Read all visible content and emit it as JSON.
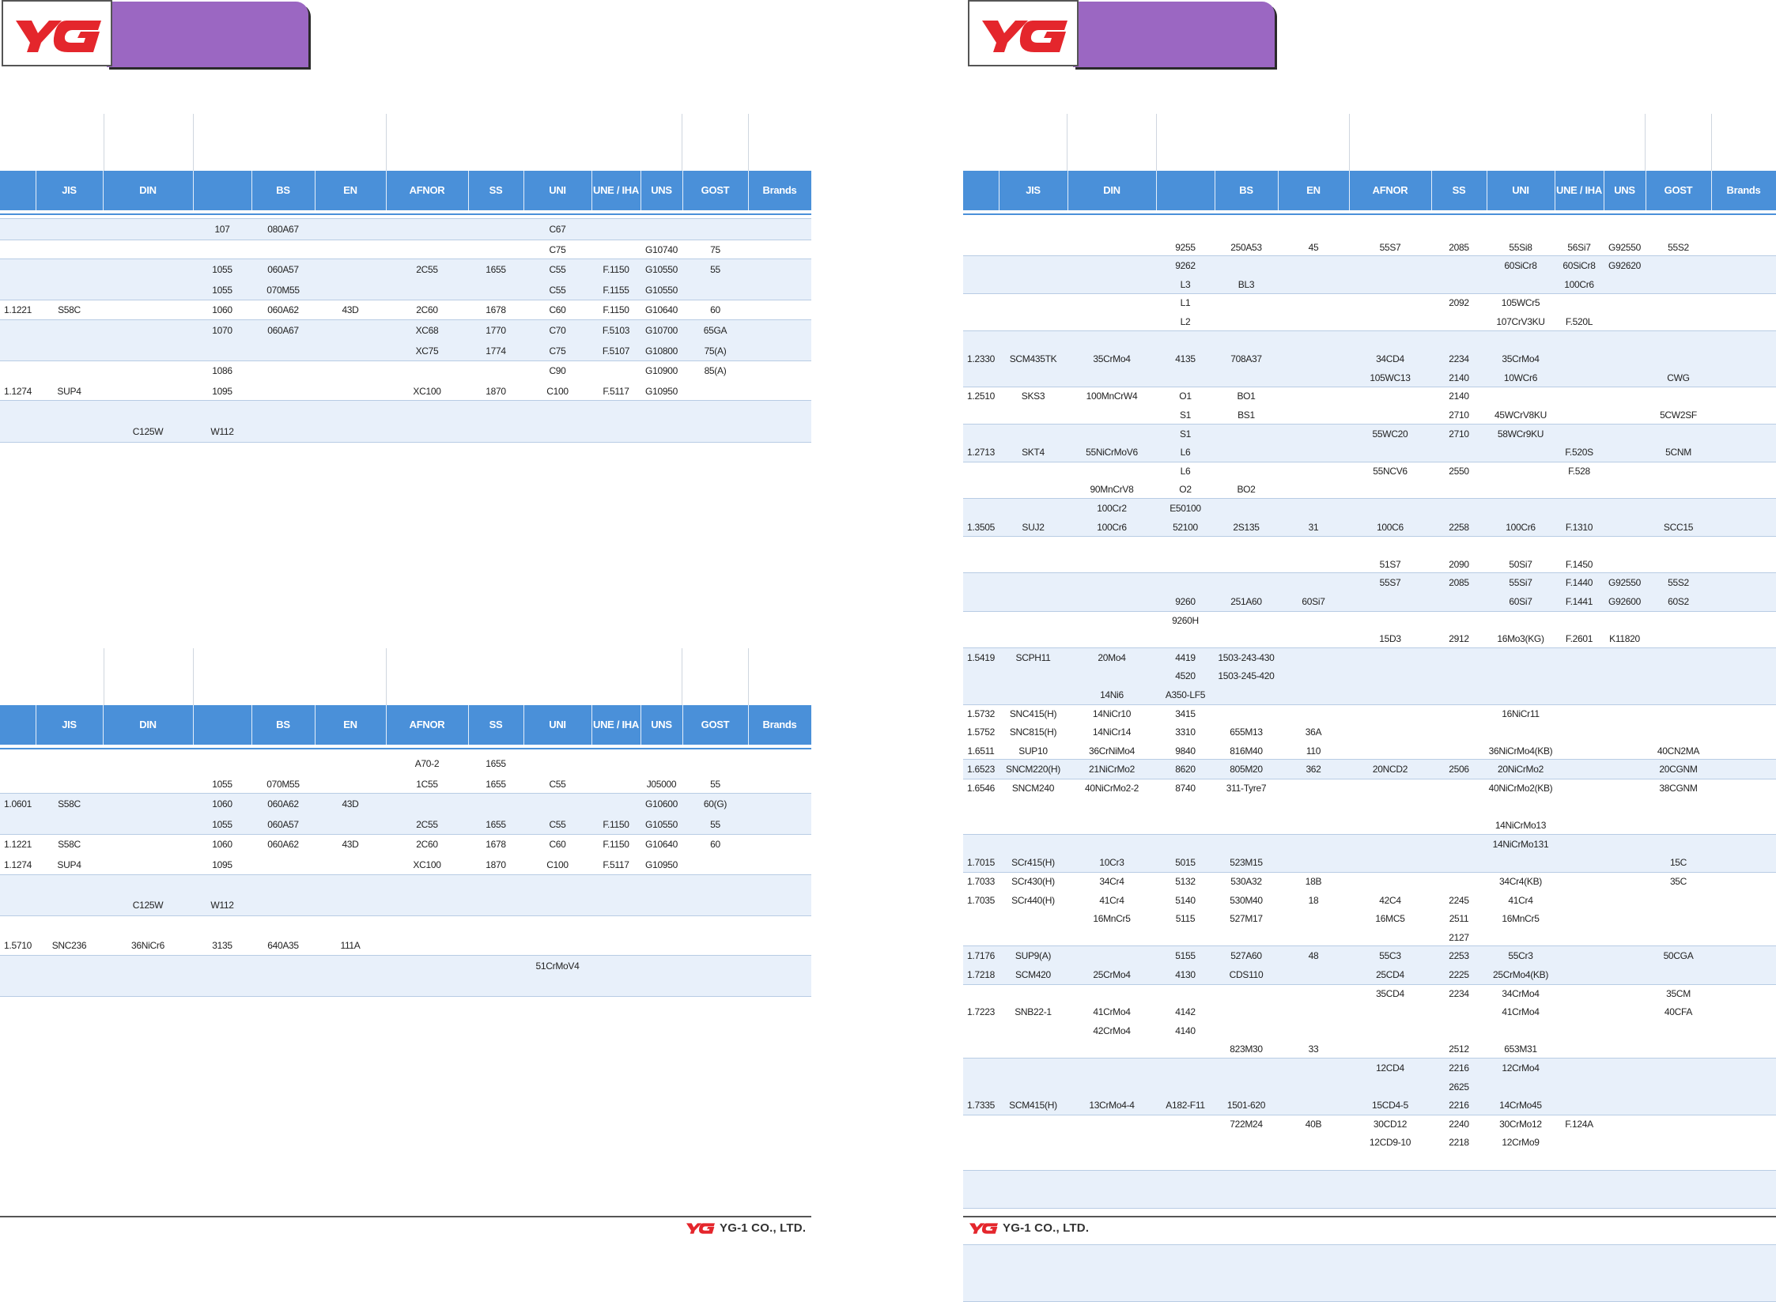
{
  "brand": {
    "company": "YG-1 CO., LTD.",
    "colors": {
      "purple": "#9b67c2",
      "blue": "#4a90d9",
      "red": "#e4262c"
    }
  },
  "columns": [
    "",
    "JIS",
    "DIN",
    "",
    "BS",
    "EN",
    "AFNOR",
    "SS",
    "UNI",
    "UNE / IHA",
    "UNS",
    "GOST",
    "Brands"
  ],
  "left_table_1": {
    "bands": [
      [
        0,
        0
      ],
      [
        2,
        3
      ],
      [
        5,
        6
      ],
      [
        9,
        10
      ]
    ],
    "rows": [
      [
        "",
        "",
        "",
        "107",
        "080A67",
        "",
        "",
        "",
        "C67",
        "",
        "",
        "",
        ""
      ],
      [
        "",
        "",
        "",
        "",
        "",
        "",
        "",
        "",
        "C75",
        "",
        "G10740",
        "75",
        ""
      ],
      [
        "",
        "",
        "",
        "1055",
        "060A57",
        "",
        "2C55",
        "1655",
        "C55",
        "F.1150",
        "G10550",
        "55",
        ""
      ],
      [
        "",
        "",
        "",
        "1055",
        "070M55",
        "",
        "",
        "",
        "C55",
        "F.1155",
        "G10550",
        "",
        ""
      ],
      [
        "1.1221",
        "S58C",
        "",
        "1060",
        "060A62",
        "43D",
        "2C60",
        "1678",
        "C60",
        "F.1150",
        "G10640",
        "60",
        ""
      ],
      [
        "",
        "",
        "",
        "1070",
        "060A67",
        "",
        "XC68",
        "1770",
        "C70",
        "F.5103",
        "G10700",
        "65GA",
        ""
      ],
      [
        "",
        "",
        "",
        "",
        "",
        "",
        "XC75",
        "1774",
        "C75",
        "F.5107",
        "G10800",
        "75(A)",
        ""
      ],
      [
        "",
        "",
        "",
        "1086",
        "",
        "",
        "",
        "",
        "C90",
        "",
        "G10900",
        "85(A)",
        ""
      ],
      [
        "1.1274",
        "SUP4",
        "",
        "1095",
        "",
        "",
        "XC100",
        "1870",
        "C100",
        "F.5117",
        "G10950",
        "",
        ""
      ],
      [
        "",
        "",
        "",
        "",
        "",
        "",
        "",
        "",
        "",
        "",
        "",
        "",
        ""
      ],
      [
        "",
        "",
        "C125W",
        "W112",
        "",
        "",
        "",
        "",
        "",
        "",
        "",
        "",
        ""
      ],
      [
        "",
        "",
        "",
        "",
        "",
        "",
        "",
        "",
        "",
        "",
        "",
        "",
        ""
      ]
    ]
  },
  "left_table_2": {
    "bands": [
      [
        2,
        3
      ],
      [
        6,
        7
      ],
      [
        10,
        11
      ]
    ],
    "rows": [
      [
        "",
        "",
        "",
        "",
        "",
        "",
        "A70-2",
        "1655",
        "",
        "",
        "",
        "",
        ""
      ],
      [
        "",
        "",
        "",
        "1055",
        "070M55",
        "",
        "1C55",
        "1655",
        "C55",
        "",
        "J05000",
        "55",
        ""
      ],
      [
        "1.0601",
        "S58C",
        "",
        "1060",
        "060A62",
        "43D",
        "",
        "",
        "",
        "",
        "G10600",
        "60(G)",
        ""
      ],
      [
        "",
        "",
        "",
        "1055",
        "060A57",
        "",
        "2C55",
        "1655",
        "C55",
        "F.1150",
        "G10550",
        "55",
        ""
      ],
      [
        "1.1221",
        "S58C",
        "",
        "1060",
        "060A62",
        "43D",
        "2C60",
        "1678",
        "C60",
        "F.1150",
        "G10640",
        "60",
        ""
      ],
      [
        "1.1274",
        "SUP4",
        "",
        "1095",
        "",
        "",
        "XC100",
        "1870",
        "C100",
        "F.5117",
        "G10950",
        "",
        ""
      ],
      [
        "",
        "",
        "",
        "",
        "",
        "",
        "",
        "",
        "",
        "",
        "",
        "",
        ""
      ],
      [
        "",
        "",
        "C125W",
        "W112",
        "",
        "",
        "",
        "",
        "",
        "",
        "",
        "",
        ""
      ],
      [
        "",
        "",
        "",
        "",
        "",
        "",
        "",
        "",
        "",
        "",
        "",
        "",
        ""
      ],
      [
        "1.5710",
        "SNC236",
        "36NiCr6",
        "3135",
        "640A35",
        "111A",
        "",
        "",
        "",
        "",
        "",
        "",
        ""
      ],
      [
        "",
        "",
        "",
        "",
        "",
        "",
        "",
        "",
        "51CrMoV4",
        "",
        "",
        "",
        ""
      ],
      [
        "",
        "",
        "",
        "",
        "",
        "",
        "",
        "",
        "",
        "",
        "",
        "",
        ""
      ]
    ]
  },
  "right_table": {
    "bands": [
      [
        2,
        3
      ],
      [
        6,
        8
      ],
      [
        11,
        12
      ],
      [
        15,
        16
      ],
      [
        19,
        20
      ],
      [
        23,
        25
      ],
      [
        29,
        29
      ],
      [
        33,
        34
      ],
      [
        39,
        40
      ],
      [
        45,
        47
      ],
      [
        51,
        52
      ],
      [
        55,
        57
      ]
    ],
    "rows": [
      [
        "",
        "",
        "",
        "",
        "",
        "",
        "",
        "",
        "",
        "",
        "",
        "",
        ""
      ],
      [
        "",
        "",
        "",
        "9255",
        "250A53",
        "45",
        "55S7",
        "2085",
        "55Si8",
        "56Si7",
        "G92550",
        "55S2",
        ""
      ],
      [
        "",
        "",
        "",
        "9262",
        "",
        "",
        "",
        "",
        "60SiCr8",
        "60SiCr8",
        "G92620",
        "",
        ""
      ],
      [
        "",
        "",
        "",
        "L3",
        "BL3",
        "",
        "",
        "",
        "",
        "100Cr6",
        "",
        "",
        ""
      ],
      [
        "",
        "",
        "",
        "L1",
        "",
        "",
        "",
        "2092",
        "105WCr5",
        "",
        "",
        "",
        ""
      ],
      [
        "",
        "",
        "",
        "L2",
        "",
        "",
        "",
        "",
        "107CrV3KU",
        "F.520L",
        "",
        "",
        ""
      ],
      [
        "",
        "",
        "",
        "",
        "",
        "",
        "",
        "",
        "",
        "",
        "",
        "",
        ""
      ],
      [
        "1.2330",
        "SCM435TK",
        "35CrMo4",
        "4135",
        "708A37",
        "",
        "34CD4",
        "2234",
        "35CrMo4",
        "",
        "",
        "",
        ""
      ],
      [
        "",
        "",
        "",
        "",
        "",
        "",
        "105WC13",
        "2140",
        "10WCr6",
        "",
        "",
        "CWG",
        ""
      ],
      [
        "1.2510",
        "SKS3",
        "100MnCrW4",
        "O1",
        "BO1",
        "",
        "",
        "2140",
        "",
        "",
        "",
        "",
        ""
      ],
      [
        "",
        "",
        "",
        "S1",
        "BS1",
        "",
        "",
        "2710",
        "45WCrV8KU",
        "",
        "",
        "5CW2SF",
        ""
      ],
      [
        "",
        "",
        "",
        "S1",
        "",
        "",
        "55WC20",
        "2710",
        "58WCr9KU",
        "",
        "",
        "",
        ""
      ],
      [
        "1.2713",
        "SKT4",
        "55NiCrMoV6",
        "L6",
        "",
        "",
        "",
        "",
        "",
        "F.520S",
        "",
        "5CNM",
        ""
      ],
      [
        "",
        "",
        "",
        "L6",
        "",
        "",
        "55NCV6",
        "2550",
        "",
        "F.528",
        "",
        "",
        ""
      ],
      [
        "",
        "",
        "90MnCrV8",
        "O2",
        "BO2",
        "",
        "",
        "",
        "",
        "",
        "",
        "",
        ""
      ],
      [
        "",
        "",
        "100Cr2",
        "E50100",
        "",
        "",
        "",
        "",
        "",
        "",
        "",
        "",
        ""
      ],
      [
        "1.3505",
        "SUJ2",
        "100Cr6",
        "52100",
        "2S135",
        "31",
        "100C6",
        "2258",
        "100Cr6",
        "F.1310",
        "",
        "SCC15",
        ""
      ],
      [
        "",
        "",
        "",
        "",
        "",
        "",
        "",
        "",
        "",
        "",
        "",
        "",
        ""
      ],
      [
        "",
        "",
        "",
        "",
        "",
        "",
        "51S7",
        "2090",
        "50Si7",
        "F.1450",
        "",
        "",
        ""
      ],
      [
        "",
        "",
        "",
        "",
        "",
        "",
        "55S7",
        "2085",
        "55Si7",
        "F.1440",
        "G92550",
        "55S2",
        ""
      ],
      [
        "",
        "",
        "",
        "9260",
        "251A60",
        "60Si7",
        "",
        "",
        "60Si7",
        "F.1441",
        "G92600",
        "60S2",
        ""
      ],
      [
        "",
        "",
        "",
        "9260H",
        "",
        "",
        "",
        "",
        "",
        "",
        "",
        "",
        ""
      ],
      [
        "",
        "",
        "",
        "",
        "",
        "",
        "15D3",
        "2912",
        "16Mo3(KG)",
        "F.2601",
        "K11820",
        "",
        ""
      ],
      [
        "1.5419",
        "SCPH11",
        "20Mo4",
        "4419",
        "1503-243-430",
        "",
        "",
        "",
        "",
        "",
        "",
        "",
        ""
      ],
      [
        "",
        "",
        "",
        "4520",
        "1503-245-420",
        "",
        "",
        "",
        "",
        "",
        "",
        "",
        ""
      ],
      [
        "",
        "",
        "14Ni6",
        "A350-LF5",
        "",
        "",
        "",
        "",
        "",
        "",
        "",
        "",
        ""
      ],
      [
        "1.5732",
        "SNC415(H)",
        "14NiCr10",
        "3415",
        "",
        "",
        "",
        "",
        "16NiCr11",
        "",
        "",
        "",
        ""
      ],
      [
        "1.5752",
        "SNC815(H)",
        "14NiCr14",
        "3310",
        "655M13",
        "36A",
        "",
        "",
        "",
        "",
        "",
        "",
        ""
      ],
      [
        "1.6511",
        "SUP10",
        "36CrNiMo4",
        "9840",
        "816M40",
        "110",
        "",
        "",
        "36NiCrMo4(KB)",
        "",
        "",
        "40CN2MA",
        ""
      ],
      [
        "1.6523",
        "SNCM220(H)",
        "21NiCrMo2",
        "8620",
        "805M20",
        "362",
        "20NCD2",
        "2506",
        "20NiCrMo2",
        "",
        "",
        "20CGNM",
        ""
      ],
      [
        "1.6546",
        "SNCM240",
        "40NiCrMo2-2",
        "8740",
        "311-Tyre7",
        "",
        "",
        "",
        "40NiCrMo2(KB)",
        "",
        "",
        "38CGNM",
        ""
      ],
      [
        "",
        "",
        "",
        "",
        "",
        "",
        "",
        "",
        "",
        "",
        "",
        "",
        ""
      ],
      [
        "",
        "",
        "",
        "",
        "",
        "",
        "",
        "",
        "14NiCrMo13",
        "",
        "",
        "",
        ""
      ],
      [
        "",
        "",
        "",
        "",
        "",
        "",
        "",
        "",
        "14NiCrMo131",
        "",
        "",
        "",
        ""
      ],
      [
        "1.7015",
        "SCr415(H)",
        "10Cr3",
        "5015",
        "523M15",
        "",
        "",
        "",
        "",
        "",
        "",
        "15C",
        ""
      ],
      [
        "1.7033",
        "SCr430(H)",
        "34Cr4",
        "5132",
        "530A32",
        "18B",
        "",
        "",
        "34Cr4(KB)",
        "",
        "",
        "35C",
        ""
      ],
      [
        "1.7035",
        "SCr440(H)",
        "41Cr4",
        "5140",
        "530M40",
        "18",
        "42C4",
        "2245",
        "41Cr4",
        "",
        "",
        "",
        ""
      ],
      [
        "",
        "",
        "16MnCr5",
        "5115",
        "527M17",
        "",
        "16MC5",
        "2511",
        "16MnCr5",
        "",
        "",
        "",
        ""
      ],
      [
        "",
        "",
        "",
        "",
        "",
        "",
        "",
        "2127",
        "",
        "",
        "",
        "",
        ""
      ],
      [
        "1.7176",
        "SUP9(A)",
        "",
        "5155",
        "527A60",
        "48",
        "55C3",
        "2253",
        "55Cr3",
        "",
        "",
        "50CGA",
        ""
      ],
      [
        "1.7218",
        "SCM420",
        "25CrMo4",
        "4130",
        "CDS110",
        "",
        "25CD4",
        "2225",
        "25CrMo4(KB)",
        "",
        "",
        "",
        ""
      ],
      [
        "",
        "",
        "",
        "",
        "",
        "",
        "35CD4",
        "2234",
        "34CrMo4",
        "",
        "",
        "35CM",
        ""
      ],
      [
        "1.7223",
        "SNB22-1",
        "41CrMo4",
        "4142",
        "",
        "",
        "",
        "",
        "41CrMo4",
        "",
        "",
        "40CFA",
        ""
      ],
      [
        "",
        "",
        "42CrMo4",
        "4140",
        "",
        "",
        "",
        "",
        "",
        "",
        "",
        "",
        ""
      ],
      [
        "",
        "",
        "",
        "",
        "823M30",
        "33",
        "",
        "2512",
        "653M31",
        "",
        "",
        "",
        ""
      ],
      [
        "",
        "",
        "",
        "",
        "",
        "",
        "12CD4",
        "2216",
        "12CrMo4",
        "",
        "",
        "",
        ""
      ],
      [
        "",
        "",
        "",
        "",
        "",
        "",
        "",
        "2625",
        "",
        "",
        "",
        "",
        ""
      ],
      [
        "1.7335",
        "SCM415(H)",
        "13CrMo4-4",
        "A182-F11",
        "1501-620",
        "",
        "15CD4-5",
        "2216",
        "14CrMo45",
        "",
        "",
        "",
        ""
      ],
      [
        "",
        "",
        "",
        "",
        "722M24",
        "40B",
        "30CD12",
        "2240",
        "30CrMo12",
        "F.124A",
        "",
        "",
        ""
      ],
      [
        "",
        "",
        "",
        "",
        "",
        "",
        "12CD9-10",
        "2218",
        "12CrMo9",
        "",
        "",
        "",
        ""
      ]
    ]
  }
}
